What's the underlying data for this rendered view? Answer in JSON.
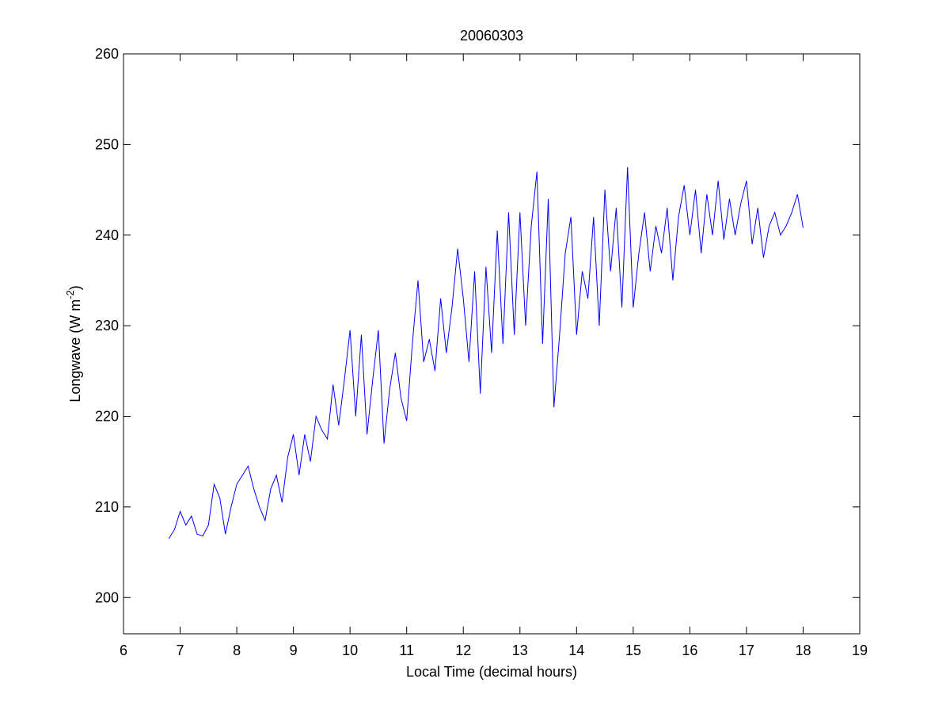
{
  "chart_data": {
    "type": "line",
    "title": "20060303",
    "xlabel": "Local Time (decimal hours)",
    "ylabel": [
      "Longwave (W m",
      "-2",
      ")"
    ],
    "x": [
      6.8,
      6.9,
      7.0,
      7.1,
      7.2,
      7.3,
      7.4,
      7.5,
      7.6,
      7.7,
      7.8,
      7.9,
      8.0,
      8.1,
      8.2,
      8.3,
      8.4,
      8.5,
      8.6,
      8.7,
      8.8,
      8.9,
      9.0,
      9.1,
      9.2,
      9.3,
      9.4,
      9.5,
      9.6,
      9.7,
      9.8,
      9.9,
      10.0,
      10.1,
      10.2,
      10.3,
      10.4,
      10.5,
      10.6,
      10.7,
      10.8,
      10.9,
      11.0,
      11.1,
      11.2,
      11.3,
      11.4,
      11.5,
      11.6,
      11.7,
      11.8,
      11.9,
      12.0,
      12.1,
      12.2,
      12.3,
      12.4,
      12.5,
      12.6,
      12.7,
      12.8,
      12.9,
      13.0,
      13.1,
      13.2,
      13.3,
      13.4,
      13.5,
      13.6,
      13.7,
      13.8,
      13.9,
      14.0,
      14.1,
      14.2,
      14.3,
      14.4,
      14.5,
      14.6,
      14.7,
      14.8,
      14.9,
      15.0,
      15.1,
      15.2,
      15.3,
      15.4,
      15.5,
      15.6,
      15.7,
      15.8,
      15.9,
      16.0,
      16.1,
      16.2,
      16.3,
      16.4,
      16.5,
      16.6,
      16.7,
      16.8,
      16.9,
      17.0,
      17.1,
      17.2,
      17.3,
      17.4,
      17.5,
      17.6,
      17.7,
      17.8,
      17.9,
      18.0
    ],
    "series": [
      {
        "color": "#0000ff",
        "values": [
          206.5,
          207.5,
          209.5,
          208,
          209,
          207,
          206.8,
          208,
          212.5,
          211,
          207,
          210,
          212.5,
          213.5,
          214.5,
          212,
          210,
          208.5,
          212,
          213.5,
          210.5,
          215.5,
          218,
          213.5,
          218,
          215,
          220,
          218.5,
          217.5,
          223.5,
          219,
          224,
          229.5,
          220,
          229,
          218,
          224,
          229.5,
          217,
          223,
          227,
          222,
          219.5,
          228,
          235,
          226,
          228.5,
          225,
          233,
          227,
          232,
          238.5,
          233,
          226,
          236,
          222.5,
          236.5,
          227,
          240.5,
          228,
          242.5,
          229,
          242.5,
          230,
          241,
          247,
          228,
          244,
          221,
          229,
          238,
          242,
          229,
          236,
          233,
          242,
          230,
          245,
          236,
          243,
          232,
          247.5,
          232,
          238,
          242.5,
          236,
          241,
          238,
          243,
          235,
          242,
          245.5,
          240,
          245,
          238,
          244.5,
          240,
          246,
          239.5,
          244,
          240,
          243.5,
          246,
          239,
          243,
          237.5,
          241,
          242.5,
          240,
          241,
          242.5,
          244.5,
          240.8
        ]
      }
    ],
    "xlim": [
      6,
      19
    ],
    "xticks": [
      6,
      7,
      8,
      9,
      10,
      11,
      12,
      13,
      14,
      15,
      16,
      17,
      18,
      19
    ],
    "ylim": [
      196,
      260
    ],
    "yticks": [
      200,
      210,
      220,
      230,
      240,
      250,
      260
    ],
    "grid": false
  }
}
